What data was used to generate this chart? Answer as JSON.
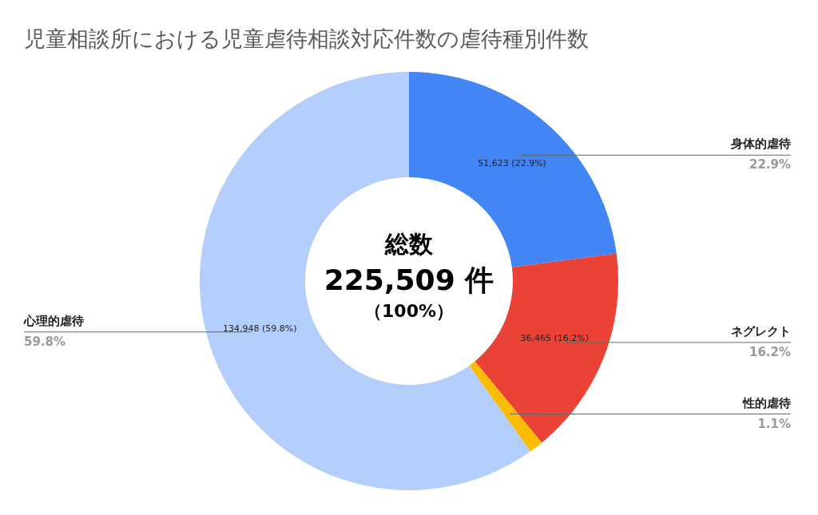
{
  "chart_data": {
    "type": "donut",
    "title": "児童相談所における児童虐待相談対応件数の虐待種別件数",
    "categories": [
      "身体的虐待",
      "ネグレクト",
      "性的虐待",
      "心理的虐待"
    ],
    "values": [
      51623,
      36465,
      2473,
      134948
    ],
    "colors": [
      "#4285f4",
      "#ea4335",
      "#fbbc04",
      "#b3cefb"
    ],
    "value_labels": [
      "51,623 (22.9%)",
      "36,465 (16.2%)",
      null,
      "134,948 (59.8%)"
    ],
    "annotations": [
      "22.9%",
      "16.2%",
      "1.1%",
      "59.8%",
      "総数",
      "225,509 件",
      "（100%）"
    ]
  }
}
